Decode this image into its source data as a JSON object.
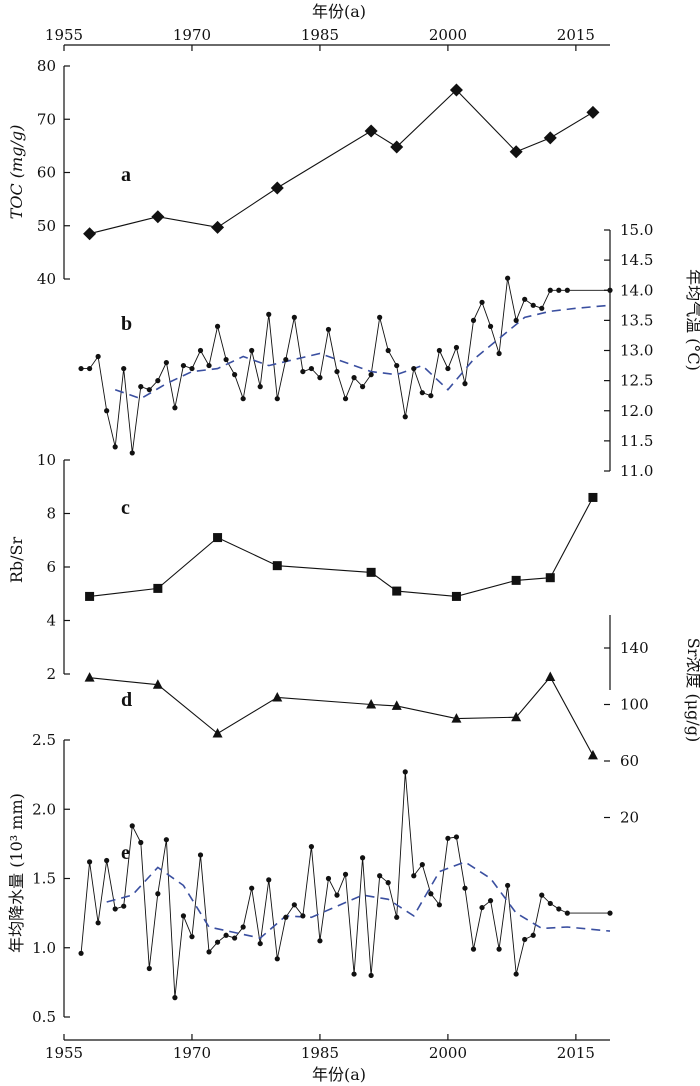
{
  "chart_data": [
    {
      "panel": "a",
      "type": "line",
      "panel_label": "a",
      "ylabel": "TOC (mg/g)",
      "xlabel": "年份(a)",
      "xlim": [
        1955,
        2019
      ],
      "xticks": [
        1955,
        1970,
        1985,
        2000,
        2015
      ],
      "ylim": [
        40,
        80
      ],
      "yticks": [
        40,
        50,
        60,
        70,
        80
      ],
      "marker": "diamond",
      "series": [
        {
          "x": [
            1958,
            1966,
            1973,
            1980,
            1991,
            1994,
            2001,
            2008,
            2012,
            2017
          ],
          "y": [
            48.5,
            51.7,
            49.7,
            57.1,
            67.8,
            64.8,
            75.5,
            63.9,
            66.5,
            71.3
          ]
        }
      ]
    },
    {
      "panel": "b",
      "type": "line",
      "panel_label": "b",
      "ylabel": "年均气温 (°C)",
      "ylim": [
        11.0,
        15.0
      ],
      "yticks": [
        11.0,
        11.5,
        12.0,
        12.5,
        13.0,
        13.5,
        14.0,
        14.5,
        15.0
      ],
      "series": [
        {
          "role": "annual",
          "x": [
            1957,
            1958,
            1959,
            1960,
            1961,
            1962,
            1963,
            1964,
            1965,
            1966,
            1967,
            1968,
            1969,
            1970,
            1971,
            1972,
            1973,
            1974,
            1975,
            1976,
            1977,
            1978,
            1979,
            1980,
            1981,
            1982,
            1983,
            1984,
            1985,
            1986,
            1987,
            1988,
            1989,
            1990,
            1991,
            1992,
            1993,
            1994,
            1995,
            1996,
            1997,
            1998,
            1999,
            2000,
            2001,
            2002,
            2003,
            2004,
            2005,
            2006,
            2007,
            2008,
            2009,
            2010,
            2011,
            2012,
            2013,
            2014,
            2019
          ],
          "y": [
            12.7,
            12.7,
            12.9,
            12.0,
            11.4,
            12.7,
            11.3,
            12.4,
            12.35,
            12.5,
            12.8,
            12.05,
            12.75,
            12.7,
            13.0,
            12.75,
            13.4,
            12.85,
            12.6,
            12.2,
            13.0,
            12.4,
            13.6,
            12.2,
            12.85,
            13.55,
            12.65,
            12.7,
            12.55,
            13.35,
            12.65,
            12.2,
            12.55,
            12.4,
            12.6,
            13.55,
            13.0,
            12.75,
            11.9,
            12.7,
            12.3,
            12.25,
            13.0,
            12.7,
            13.05,
            12.45,
            13.5,
            13.8,
            13.4,
            12.95,
            14.2,
            13.5,
            13.85,
            13.75,
            13.7,
            14.0,
            14.0,
            14.0,
            14.0
          ]
        },
        {
          "role": "trend",
          "x": [
            1961,
            1964,
            1967,
            1970,
            1973,
            1976,
            1979,
            1982,
            1985,
            1988,
            1991,
            1994,
            1997,
            2000,
            2003,
            2006,
            2009,
            2012,
            2015,
            2019
          ],
          "y": [
            12.35,
            12.2,
            12.45,
            12.65,
            12.7,
            12.9,
            12.75,
            12.85,
            12.95,
            12.8,
            12.65,
            12.6,
            12.75,
            12.35,
            12.85,
            13.2,
            13.55,
            13.65,
            13.7,
            13.75
          ]
        }
      ]
    },
    {
      "panel": "c",
      "type": "line",
      "panel_label": "c",
      "ylabel": "Rb/Sr",
      "ylim": [
        0,
        10
      ],
      "yticks": [
        2,
        4,
        6,
        8,
        10
      ],
      "marker": "square",
      "series": [
        {
          "x": [
            1958,
            1966,
            1973,
            1980,
            1991,
            1994,
            2001,
            2008,
            2012,
            2017
          ],
          "y": [
            4.9,
            5.2,
            7.1,
            6.05,
            5.8,
            5.1,
            4.9,
            5.5,
            5.6,
            8.6
          ]
        }
      ]
    },
    {
      "panel": "d",
      "type": "line",
      "panel_label": "d",
      "ylabel": "Sr浓度 (μg/g)",
      "ylim": [
        20,
        160
      ],
      "yticks": [
        20,
        60,
        100,
        140
      ],
      "marker": "triangle",
      "series": [
        {
          "x": [
            1958,
            1966,
            1973,
            1980,
            1991,
            1994,
            2001,
            2008,
            2012,
            2017
          ],
          "y": [
            119,
            114,
            79.5,
            105,
            100,
            99,
            90,
            91,
            119.5,
            64
          ]
        }
      ]
    },
    {
      "panel": "e",
      "type": "line",
      "panel_label": "e",
      "ylabel": "年均降水量 (10³ mm)",
      "xlabel": "年份(a)",
      "xlim": [
        1955,
        2019
      ],
      "xticks": [
        1955,
        1970,
        1985,
        2000,
        2015
      ],
      "ylim": [
        0.5,
        2.5
      ],
      "yticks": [
        0.5,
        1.0,
        1.5,
        2.0,
        2.5
      ],
      "series": [
        {
          "role": "annual",
          "x": [
            1957,
            1958,
            1959,
            1960,
            1961,
            1962,
            1963,
            1964,
            1965,
            1966,
            1967,
            1968,
            1969,
            1970,
            1971,
            1972,
            1973,
            1974,
            1975,
            1976,
            1977,
            1978,
            1979,
            1980,
            1981,
            1982,
            1983,
            1984,
            1985,
            1986,
            1987,
            1988,
            1989,
            1990,
            1991,
            1992,
            1993,
            1994,
            1995,
            1996,
            1997,
            1998,
            1999,
            2000,
            2001,
            2002,
            2003,
            2004,
            2005,
            2006,
            2007,
            2008,
            2009,
            2010,
            2011,
            2012,
            2013,
            2014,
            2019
          ],
          "y": [
            0.96,
            1.62,
            1.18,
            1.63,
            1.28,
            1.3,
            1.88,
            1.76,
            0.85,
            1.39,
            1.78,
            0.64,
            1.23,
            1.08,
            1.67,
            0.97,
            1.04,
            1.09,
            1.07,
            1.15,
            1.43,
            1.03,
            1.49,
            0.92,
            1.22,
            1.31,
            1.23,
            1.73,
            1.05,
            1.5,
            1.38,
            1.53,
            0.81,
            1.65,
            0.8,
            1.52,
            1.47,
            1.22,
            2.27,
            1.52,
            1.6,
            1.39,
            1.31,
            1.79,
            1.8,
            1.43,
            0.99,
            1.29,
            1.34,
            0.99,
            1.45,
            0.81,
            1.06,
            1.09,
            1.38,
            1.32,
            1.28,
            1.25,
            1.25
          ]
        },
        {
          "role": "trend",
          "x": [
            1960,
            1963,
            1966,
            1969,
            1972,
            1975,
            1978,
            1981,
            1984,
            1987,
            1990,
            1993,
            1996,
            1999,
            2002,
            2005,
            2008,
            2011,
            2014,
            2019
          ],
          "y": [
            1.33,
            1.38,
            1.58,
            1.45,
            1.15,
            1.11,
            1.07,
            1.23,
            1.22,
            1.3,
            1.38,
            1.35,
            1.23,
            1.55,
            1.62,
            1.5,
            1.25,
            1.14,
            1.15,
            1.12
          ]
        }
      ]
    }
  ]
}
